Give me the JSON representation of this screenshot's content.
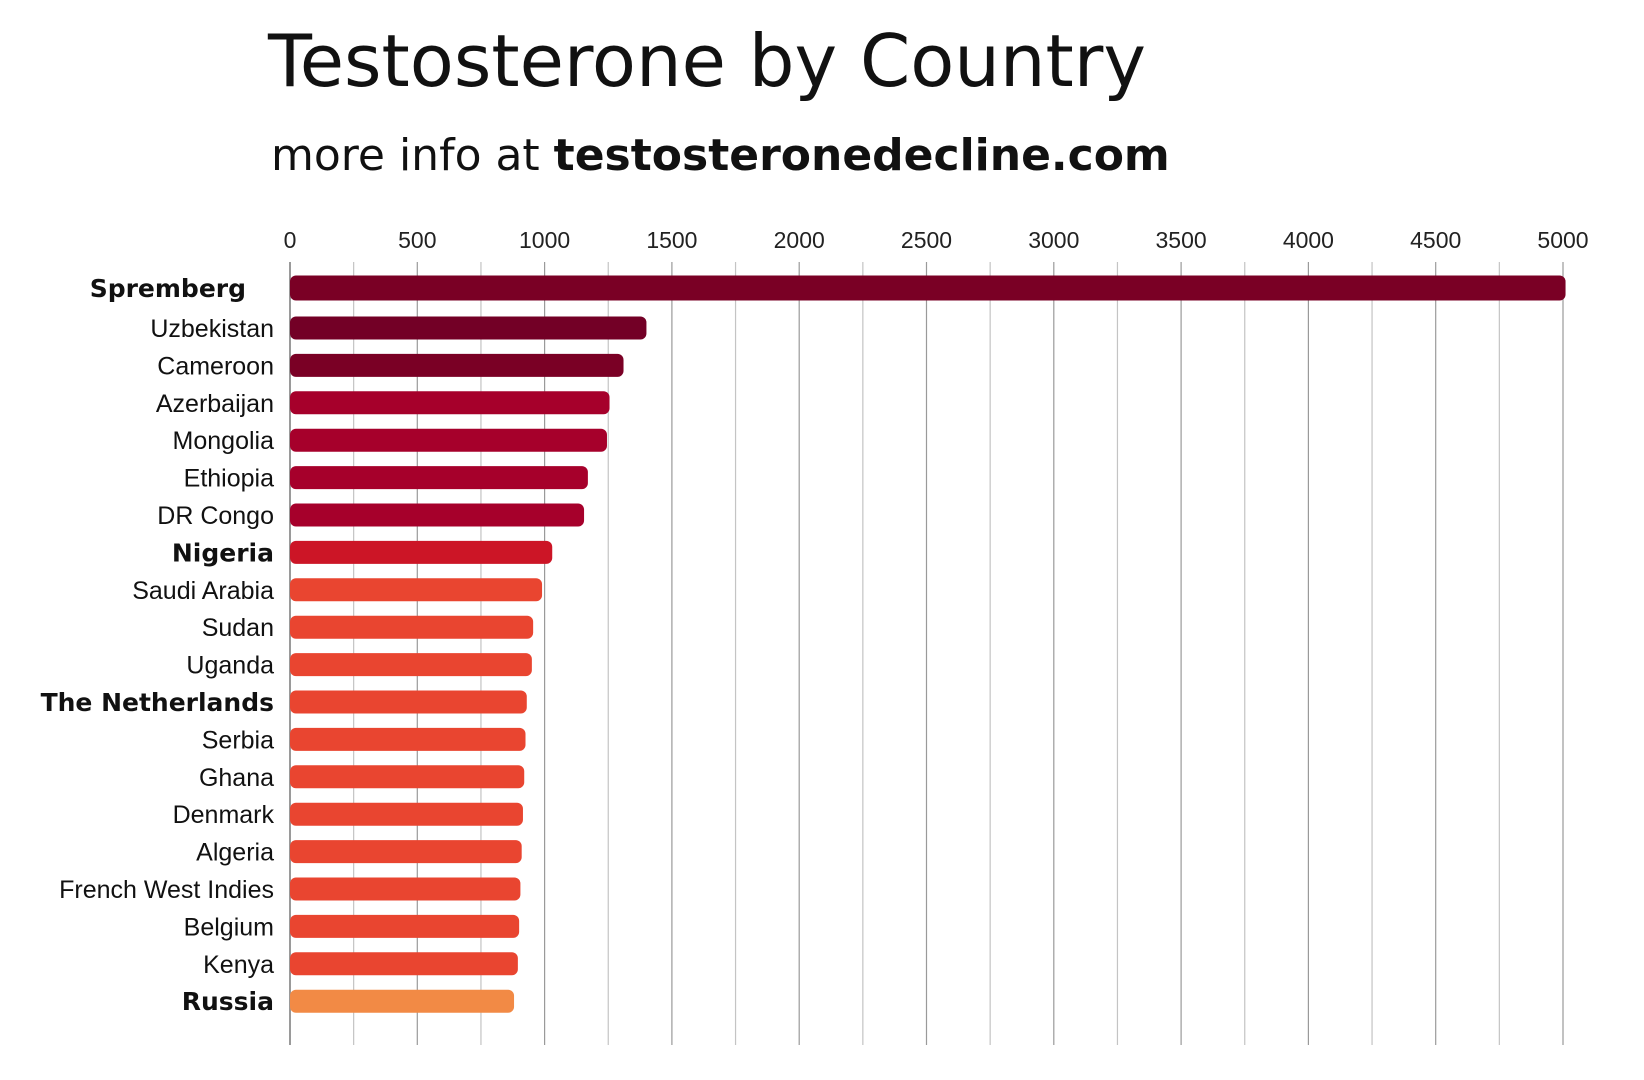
{
  "header": {
    "title": "Testosterone by Country",
    "subtitle_prefix": "more info at ",
    "subtitle_link": "testosteronedecline.com"
  },
  "chart_data": {
    "type": "bar",
    "orientation": "horizontal",
    "title": "Testosterone by Country",
    "subtitle": "more info at testosteronedecline.com",
    "xlabel": "",
    "ylabel": "",
    "xlim": [
      0,
      5000
    ],
    "xticks": [
      0,
      500,
      1000,
      1500,
      2000,
      2500,
      3000,
      3500,
      4000,
      4500,
      5000
    ],
    "axis_position": "top",
    "grid": true,
    "legend": "none",
    "categories": [
      "Spremberg",
      "Uzbekistan",
      "Cameroon",
      "Azerbaijan",
      "Mongolia",
      "Ethiopia",
      "DR Congo",
      "Nigeria",
      "Saudi Arabia",
      "Sudan",
      "Uganda",
      "The Netherlands",
      "Serbia",
      "Ghana",
      "Denmark",
      "Algeria",
      "French West Indies",
      "Belgium",
      "Kenya",
      "Russia"
    ],
    "values": [
      5010,
      1400,
      1310,
      1255,
      1245,
      1170,
      1155,
      1030,
      990,
      955,
      950,
      930,
      925,
      920,
      915,
      910,
      905,
      900,
      895,
      880
    ],
    "bold_categories": [
      "Spremberg",
      "Nigeria",
      "The Netherlands",
      "Russia"
    ],
    "bar_colors": [
      "#7a0025",
      "#730026",
      "#7a0025",
      "#a6002b",
      "#a6002b",
      "#a6002b",
      "#a6002b",
      "#cc1526",
      "#e94530",
      "#e94530",
      "#e94530",
      "#e94530",
      "#e94530",
      "#e94530",
      "#e94530",
      "#e94530",
      "#e94530",
      "#e94530",
      "#e94530",
      "#f28a45"
    ]
  }
}
